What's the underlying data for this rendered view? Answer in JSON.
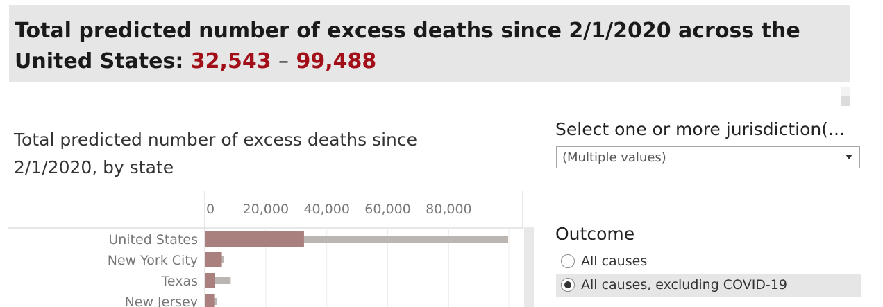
{
  "header": {
    "title_prefix": "Total predicted number of excess deaths since 2/1/2020 across the United States:",
    "range_low": "32,543",
    "range_sep": "–",
    "range_high": "99,488",
    "accent_color": "#a30f18"
  },
  "chart_data": {
    "type": "bar",
    "title": "Total predicted number of excess deaths since 2/1/2020, by state",
    "categories": [
      "United States",
      "New York City",
      "Texas",
      "New Jersey"
    ],
    "series": [
      {
        "values": [
          32543,
          5600,
          3300,
          3100
        ],
        "color": "#a9807d"
      },
      {
        "values": [
          99488,
          6300,
          8500,
          4100
        ],
        "color": "#bcb6b3"
      }
    ],
    "x_ticks": [
      "0",
      "20,000",
      "40,000",
      "60,000",
      "80,000"
    ],
    "x_tick_values": [
      0,
      20000,
      40000,
      60000,
      80000
    ],
    "xlim": [
      0,
      104000
    ],
    "grid": true,
    "orientation": "horizontal"
  },
  "filter": {
    "title": "Select one or more jurisdiction(...",
    "value": "(Multiple values)"
  },
  "outcome": {
    "title": "Outcome",
    "options": [
      {
        "label": "All causes",
        "selected": false
      },
      {
        "label": "All causes, excluding COVID-19",
        "selected": true
      }
    ]
  }
}
